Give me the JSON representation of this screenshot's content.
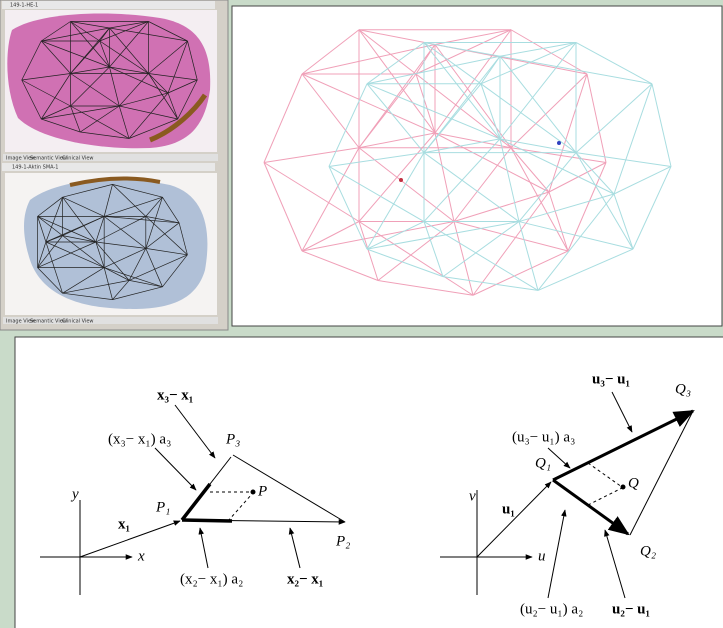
{
  "screenshots": {
    "top": {
      "window_title": "149-1-HE-1",
      "tabs": [
        "Image View",
        "Semantic View",
        "Clinical View"
      ]
    },
    "bottom": {
      "window_title": "149-1-Aktin SMA-1",
      "tabs": [
        "Image View",
        "Semantic View",
        "Clinical View"
      ]
    }
  },
  "diagram": {
    "left": {
      "y_axis": "y",
      "x_axis": "x",
      "x1": "x₁",
      "P1": "P₁",
      "P2": "P₂",
      "P3": "P₃",
      "P": "P",
      "x3_minus_x1": "x₃− x₁",
      "x3_minus_x1_a3": "(x₃− x₁) a₃",
      "x2_minus_x1_a2": "(x₂− x₁) a₂",
      "x2_minus_x1": "x₂− x₁"
    },
    "right": {
      "v_axis": "v",
      "u_axis": "u",
      "u1": "u₁",
      "Q1": "Q₁",
      "Q2": "Q₂",
      "Q3": "Q₃",
      "Q": "Q",
      "u3_minus_u1": "u₃− u₁",
      "u3_minus_u1_a3": "(u₃− u₁) a₃",
      "u2_minus_u1_a2": "(u₂− u₁) a₂",
      "u2_minus_u1": "u₂− u₁"
    }
  }
}
